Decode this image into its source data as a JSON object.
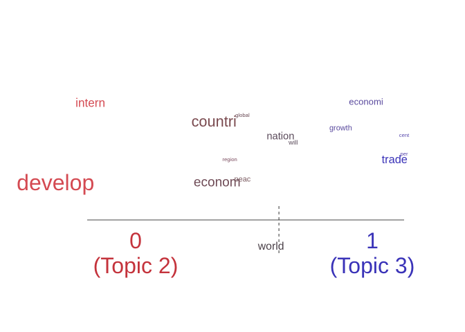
{
  "chart_data": {
    "type": "scatter",
    "description_axis": "word position along a two-topic contrast axis",
    "axis": {
      "left_value": "0",
      "left_topic": "(Topic 2)",
      "left_color": "#c4333c",
      "right_value": "1",
      "right_topic": "(Topic 3)",
      "right_color": "#3a33b8",
      "xlim": [
        0,
        1
      ],
      "midpoint": 0.605
    },
    "words": [
      {
        "label": "develop",
        "x": -0.1,
        "y": 0.28,
        "weight": 1.0,
        "color": "#d44a52"
      },
      {
        "label": "intern",
        "x": 0.01,
        "y": 0.87,
        "weight": 0.45,
        "color": "#d44a52"
      },
      {
        "label": "countri",
        "x": 0.4,
        "y": 0.73,
        "weight": 0.62,
        "color": "#7a4a4f"
      },
      {
        "label": "global",
        "x": 0.49,
        "y": 0.78,
        "weight": 0.1,
        "color": "#6a4a55"
      },
      {
        "label": "econom",
        "x": 0.41,
        "y": 0.28,
        "weight": 0.52,
        "color": "#6e4a55"
      },
      {
        "label": "peac",
        "x": 0.49,
        "y": 0.3,
        "weight": 0.22,
        "color": "#7a5a60"
      },
      {
        "label": "region",
        "x": 0.45,
        "y": 0.45,
        "weight": 0.1,
        "color": "#7a4a5e"
      },
      {
        "label": "nation",
        "x": 0.61,
        "y": 0.62,
        "weight": 0.36,
        "color": "#5a4a5a"
      },
      {
        "label": "will",
        "x": 0.65,
        "y": 0.57,
        "weight": 0.17,
        "color": "#5a4a5a"
      },
      {
        "label": "world",
        "x": 0.58,
        "y": -0.2,
        "weight": 0.4,
        "color": "#4a4048"
      },
      {
        "label": "economi",
        "x": 0.88,
        "y": 0.88,
        "weight": 0.3,
        "color": "#5a4a9e"
      },
      {
        "label": "growth",
        "x": 0.8,
        "y": 0.68,
        "weight": 0.22,
        "color": "#5a4a9e"
      },
      {
        "label": "cent",
        "x": 1.0,
        "y": 0.63,
        "weight": 0.1,
        "color": "#5a4aae"
      },
      {
        "label": "per",
        "x": 1.0,
        "y": 0.49,
        "weight": 0.1,
        "color": "#5a4aae"
      },
      {
        "label": "trade",
        "x": 0.97,
        "y": 0.45,
        "weight": 0.42,
        "color": "#3a33b8"
      }
    ]
  }
}
